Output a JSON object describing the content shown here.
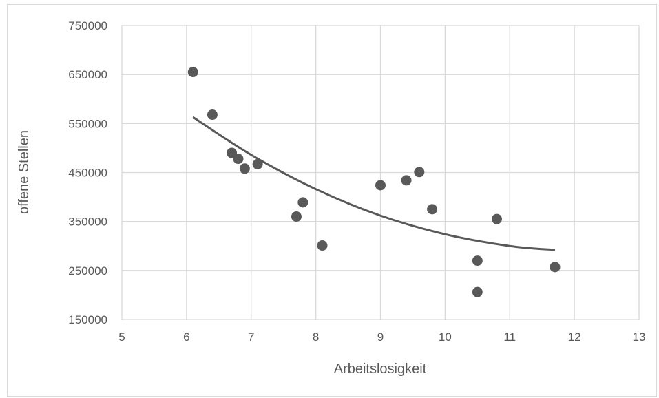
{
  "chart_data": {
    "type": "scatter",
    "title": "",
    "xlabel": "Arbeitslosigkeit",
    "ylabel": "offene Stellen",
    "xlim": [
      5,
      13
    ],
    "ylim": [
      150000,
      750000
    ],
    "x_ticks": [
      "5",
      "6",
      "7",
      "8",
      "9",
      "10",
      "11",
      "12",
      "13"
    ],
    "y_ticks": [
      "150000",
      "250000",
      "350000",
      "450000",
      "550000",
      "650000",
      "750000"
    ],
    "grid": true,
    "legend": "none",
    "series": [
      {
        "points": [
          {
            "x": 6.1,
            "y": 655000
          },
          {
            "x": 6.4,
            "y": 568000
          },
          {
            "x": 6.7,
            "y": 490000
          },
          {
            "x": 6.8,
            "y": 478000
          },
          {
            "x": 6.9,
            "y": 458000
          },
          {
            "x": 7.1,
            "y": 467000
          },
          {
            "x": 7.7,
            "y": 360000
          },
          {
            "x": 7.8,
            "y": 389000
          },
          {
            "x": 8.1,
            "y": 301000
          },
          {
            "x": 9.0,
            "y": 424000
          },
          {
            "x": 9.4,
            "y": 434000
          },
          {
            "x": 9.6,
            "y": 451000
          },
          {
            "x": 9.8,
            "y": 375000
          },
          {
            "x": 10.5,
            "y": 270000
          },
          {
            "x": 10.5,
            "y": 206000
          },
          {
            "x": 10.8,
            "y": 355000
          },
          {
            "x": 11.7,
            "y": 257000
          }
        ],
        "color": "#595959"
      }
    ],
    "trendline": {
      "type": "polynomial",
      "x_range": [
        6.1,
        11.7
      ],
      "points": [
        {
          "x": 6.1,
          "y": 563000
        },
        {
          "x": 7.0,
          "y": 486000
        },
        {
          "x": 8.0,
          "y": 416000
        },
        {
          "x": 9.0,
          "y": 362000
        },
        {
          "x": 10.0,
          "y": 324000
        },
        {
          "x": 11.0,
          "y": 300000
        },
        {
          "x": 11.7,
          "y": 292000
        }
      ],
      "color": "#595959"
    }
  }
}
